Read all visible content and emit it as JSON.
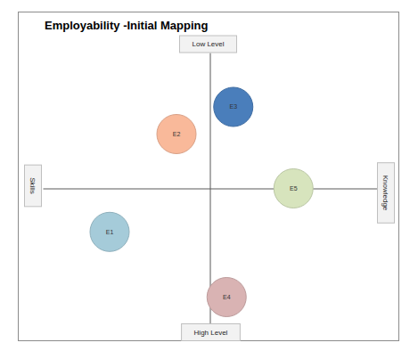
{
  "chart_data": {
    "type": "scatter",
    "title": "Employability -Initial Mapping",
    "quadrant_labels": {
      "top": "Low Level",
      "bottom": "High Level",
      "left": "Skills",
      "right": "Knowledge"
    },
    "point_labels": [
      "E1",
      "E2",
      "E3",
      "E4",
      "E5"
    ],
    "x": [
      -3.0,
      -1.0,
      0.7,
      0.5,
      2.5
    ],
    "values": [
      -1.6,
      2.0,
      3.0,
      -4.0,
      0.0
    ],
    "colors": [
      "#a5cbd9",
      "#f9b99a",
      "#4a7ebb",
      "#d9b3b3",
      "#d7e4bd"
    ],
    "xlim": [
      -5,
      5
    ],
    "ylim": [
      -5,
      5
    ],
    "xticks": [],
    "yticks": [],
    "tick_labels": false
  }
}
